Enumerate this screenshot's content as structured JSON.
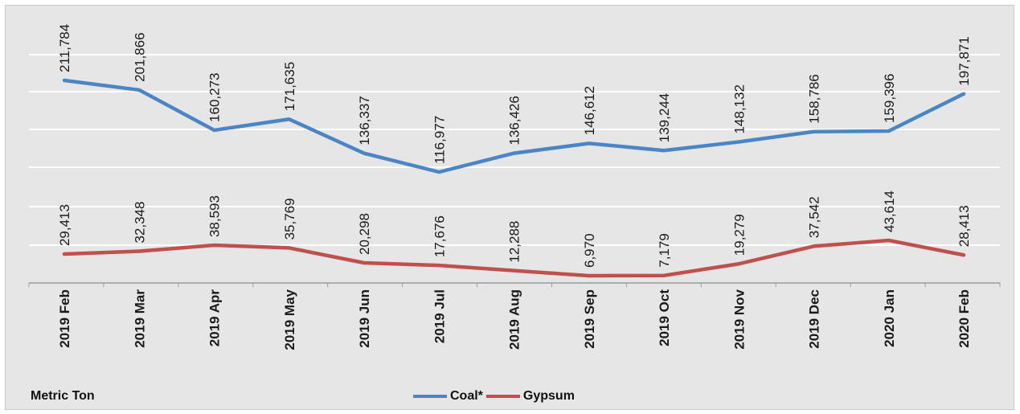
{
  "chart_data": {
    "type": "line",
    "categories": [
      "2019 Feb",
      "2019 Mar",
      "2019 Apr",
      "2019 May",
      "2019 Jun",
      "2019 Jul",
      "2019 Aug",
      "2019 Sep",
      "2019 Oct",
      "2019 Nov",
      "2019 Dec",
      "2020 Jan",
      "2020 Feb"
    ],
    "series": [
      {
        "name": "Coal*",
        "color": "#4a86c6",
        "values": [
          211784,
          201866,
          160273,
          171635,
          136337,
          116977,
          136426,
          146612,
          139244,
          148132,
          158786,
          159396,
          197871
        ],
        "labels": [
          "211,784",
          "201,866",
          "160,273",
          "171,635",
          "136,337",
          "116,977",
          "136,426",
          "146,612",
          "139,244",
          "148,132",
          "158,786",
          "159,396",
          "197,871"
        ]
      },
      {
        "name": "Gypsum",
        "color": "#c0504d",
        "values": [
          29413,
          32348,
          38593,
          35769,
          20298,
          17676,
          12288,
          6970,
          7179,
          19279,
          37542,
          43614,
          28413
        ],
        "labels": [
          "29,413",
          "32,348",
          "38,593",
          "35,769",
          "20,298",
          "17,676",
          "12,288",
          "6,970",
          "7,179",
          "19,279",
          "37,542",
          "43,614",
          "28,413"
        ]
      }
    ],
    "ylabel": "Metric Ton",
    "grid": true,
    "legend": "bottom-center"
  },
  "legend": {
    "coal": "Coal*",
    "gypsum": "Gypsum"
  },
  "unit_label": "Metric Ton"
}
